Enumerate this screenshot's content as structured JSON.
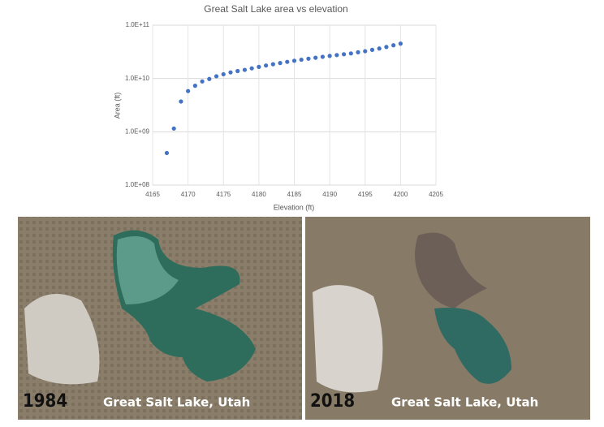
{
  "chart_data": {
    "type": "scatter",
    "title": "Great Salt Lake area vs elevation",
    "x_label": "Elevation (ft)",
    "y_label": "Area (ft)",
    "x": [
      4167,
      4168,
      4169,
      4170,
      4171,
      4172,
      4173,
      4174,
      4175,
      4176,
      4177,
      4178,
      4179,
      4180,
      4181,
      4182,
      4183,
      4184,
      4185,
      4186,
      4187,
      4188,
      4189,
      4190,
      4191,
      4192,
      4193,
      4194,
      4195,
      4196,
      4197,
      4198,
      4199,
      4200
    ],
    "series": [
      {
        "name": "Area",
        "color": "#4472c4",
        "values": [
          400000000.0,
          1150000000.0,
          3700000000.0,
          5800000000.0,
          7300000000.0,
          8800000000.0,
          9800000000.0,
          11000000000.0,
          12000000000.0,
          13000000000.0,
          13800000000.0,
          14500000000.0,
          15500000000.0,
          16500000000.0,
          17500000000.0,
          18500000000.0,
          19500000000.0,
          20500000000.0,
          21500000000.0,
          22500000000.0,
          23500000000.0,
          24500000000.0,
          25500000000.0,
          26500000000.0,
          27500000000.0,
          28500000000.0,
          29500000000.0,
          31000000000.0,
          32500000000.0,
          34500000000.0,
          36500000000.0,
          39000000000.0,
          42000000000.0,
          45000000000.0
        ]
      }
    ],
    "xlim": [
      4165,
      4205
    ],
    "xticks": [
      4165,
      4170,
      4175,
      4180,
      4185,
      4190,
      4195,
      4200,
      4205
    ],
    "ylim": [
      100000000.0,
      100000000000.0
    ],
    "log_y": true,
    "yticks": [
      {
        "value": 100000000.0,
        "label": "1.0E+08"
      },
      {
        "value": 1000000000.0,
        "label": "1.0E+09"
      },
      {
        "value": 10000000000.0,
        "label": "1.0E+10"
      },
      {
        "value": 100000000000.0,
        "label": "1.0E+11"
      }
    ],
    "grid": true
  },
  "images": [
    {
      "year": "1984",
      "caption": "Great Salt Lake, Utah"
    },
    {
      "year": "2018",
      "caption": "Great Salt Lake, Utah"
    }
  ]
}
